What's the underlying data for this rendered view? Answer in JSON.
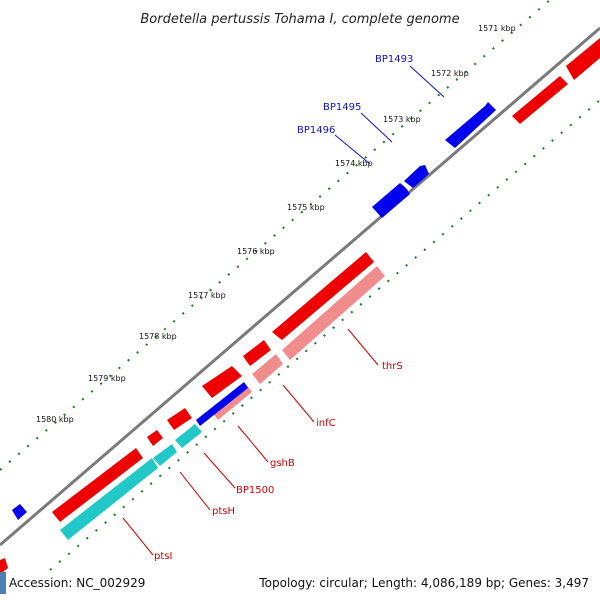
{
  "title": "Bordetella pertussis Tohama I, complete genome",
  "ticks": [
    "1571 kbp",
    "1572 kbp",
    "1573 kbp",
    "1574 kbp",
    "1575 kbp",
    "1576 kbp",
    "1577 kbp",
    "1578 kbp",
    "1579 kbp",
    "1580 kbp"
  ],
  "genes_top": [
    "BP1493",
    "BP1495",
    "BP1496"
  ],
  "genes_bottom": [
    "thrS",
    "infC",
    "gshB",
    "BP1500",
    "ptsH",
    "ptsI"
  ],
  "footer": {
    "accession": "Accession: NC_002929",
    "topology": "Topology: circular; Length: 4,086,189 bp; Genes: 3,497"
  },
  "colors": {
    "backbone": "#777777",
    "tick": "#1a7a1a",
    "forward_gene": "#0000ee",
    "reverse_gene": "#ee0000",
    "rna_like": "#f08c8c",
    "cyan": "#22c8c8"
  }
}
